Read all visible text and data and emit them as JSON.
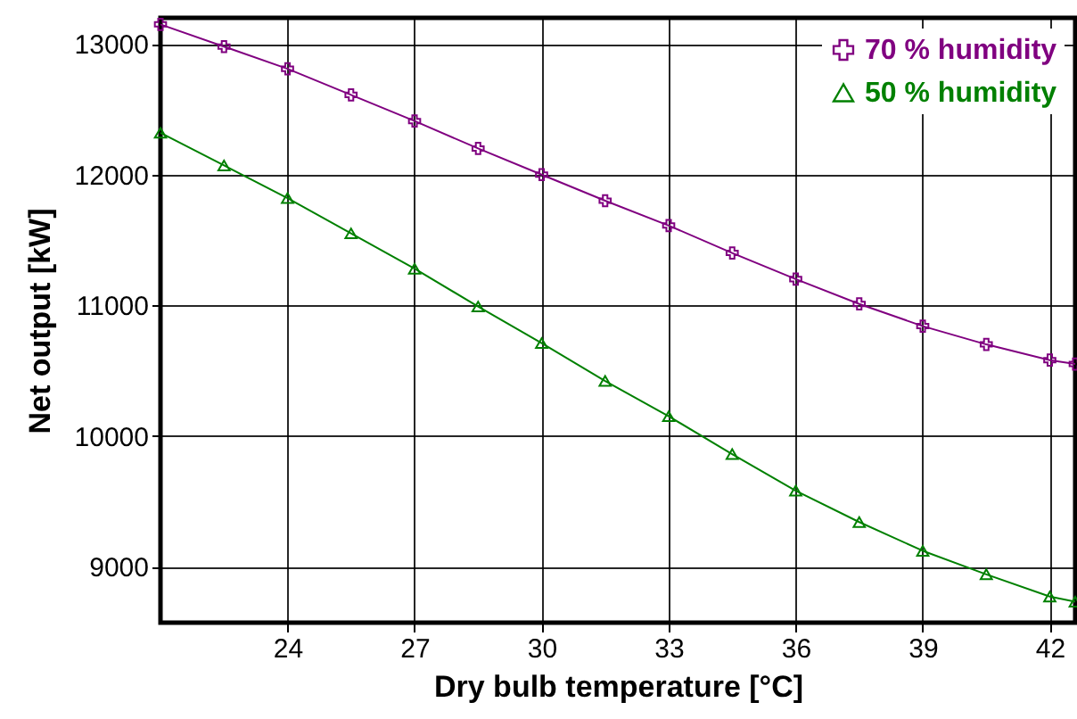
{
  "chart_data": {
    "type": "line",
    "xlabel": "Dry bulb temperature [°C]",
    "ylabel": "Net output [kW]",
    "xlim": [
      21,
      42.6
    ],
    "ylim": [
      8570,
      13200
    ],
    "xticks": [
      24,
      27,
      30,
      33,
      36,
      39,
      42
    ],
    "yticks": [
      9000,
      10000,
      11000,
      12000,
      13000
    ],
    "grid": true,
    "legend": "top right",
    "series": [
      {
        "name": "70 % humidity",
        "color": "#800080",
        "marker": "cross",
        "x": [
          21,
          22.5,
          24,
          25.5,
          27,
          28.5,
          30,
          31.5,
          33,
          34.5,
          36,
          37.5,
          39,
          40.5,
          42,
          42.6
        ],
        "values": [
          13150,
          12980,
          12810,
          12610,
          12410,
          12200,
          12000,
          11800,
          11610,
          11400,
          11200,
          11010,
          10840,
          10700,
          10580,
          10550
        ]
      },
      {
        "name": "50 % humidity",
        "color": "#008000",
        "marker": "triangle",
        "x": [
          21,
          22.5,
          24,
          25.5,
          27,
          28.5,
          30,
          31.5,
          33,
          34.5,
          36,
          37.5,
          39,
          40.5,
          42,
          42.6
        ],
        "values": [
          12320,
          12070,
          11820,
          11550,
          11280,
          10990,
          10710,
          10420,
          10150,
          9860,
          9580,
          9340,
          9120,
          8940,
          8770,
          8730
        ]
      }
    ]
  }
}
